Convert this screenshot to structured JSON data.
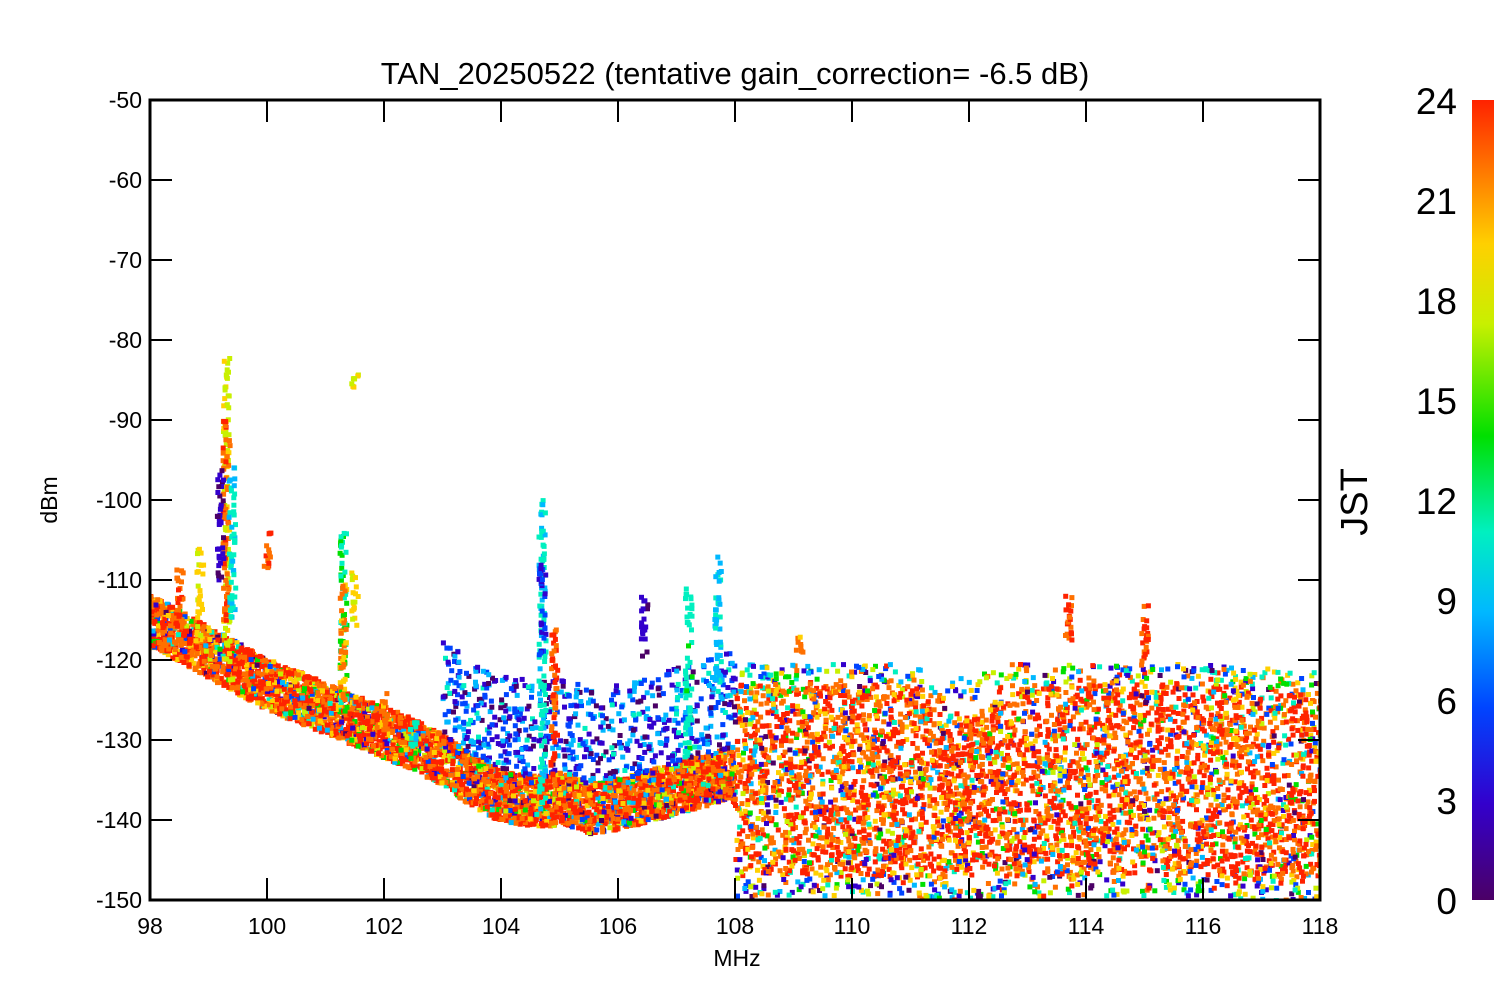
{
  "chart_data": {
    "type": "scatter",
    "title": "TAN_20250522 (tentative gain_correction= -6.5 dB)",
    "xlabel": "MHz",
    "ylabel": "dBm",
    "xlim": [
      98,
      118
    ],
    "ylim": [
      -150,
      -50
    ],
    "xticks": [
      98,
      100,
      102,
      104,
      106,
      108,
      110,
      112,
      114,
      116,
      118
    ],
    "yticks": [
      -50,
      -60,
      -70,
      -80,
      -90,
      -100,
      -110,
      -120,
      -130,
      -140,
      -150
    ],
    "colorbar": {
      "label": "JST",
      "range": [
        0,
        24
      ],
      "ticks": [
        0,
        3,
        6,
        9,
        12,
        15,
        18,
        21,
        24
      ],
      "colormap": "rainbow",
      "colors": [
        "#4b0066",
        "#3300cc",
        "#0044ff",
        "#00b8ff",
        "#00f0c0",
        "#00e000",
        "#c8f000",
        "#ffd000",
        "#ff7000",
        "#ff2200"
      ]
    },
    "noise_floor": [
      {
        "x": 98.0,
        "y": -115
      },
      {
        "x": 98.5,
        "y": -117
      },
      {
        "x": 99.0,
        "y": -119
      },
      {
        "x": 99.5,
        "y": -121
      },
      {
        "x": 100.0,
        "y": -123
      },
      {
        "x": 100.5,
        "y": -124.5
      },
      {
        "x": 101.0,
        "y": -126
      },
      {
        "x": 101.5,
        "y": -127.5
      },
      {
        "x": 102.0,
        "y": -129
      },
      {
        "x": 102.5,
        "y": -130.5
      },
      {
        "x": 103.0,
        "y": -132.5
      },
      {
        "x": 103.5,
        "y": -135
      },
      {
        "x": 104.0,
        "y": -137
      },
      {
        "x": 104.5,
        "y": -137.5
      },
      {
        "x": 104.9,
        "y": -137.5
      },
      {
        "x": 105.0,
        "y": -137
      },
      {
        "x": 105.5,
        "y": -138.5
      },
      {
        "x": 106.0,
        "y": -138
      },
      {
        "x": 106.5,
        "y": -137
      },
      {
        "x": 107.0,
        "y": -136
      },
      {
        "x": 107.5,
        "y": -135
      },
      {
        "x": 107.9,
        "y": -134
      },
      {
        "x": 108.0,
        "y": -135
      },
      {
        "x": 109.0,
        "y": -135
      },
      {
        "x": 110.0,
        "y": -135
      },
      {
        "x": 111.0,
        "y": -135
      },
      {
        "x": 111.5,
        "y": -136
      },
      {
        "x": 112.0,
        "y": -137
      },
      {
        "x": 112.5,
        "y": -135
      },
      {
        "x": 113.0,
        "y": -135
      },
      {
        "x": 114.0,
        "y": -135
      },
      {
        "x": 115.0,
        "y": -135
      },
      {
        "x": 116.0,
        "y": -135
      },
      {
        "x": 117.0,
        "y": -135.5
      },
      {
        "x": 118.0,
        "y": -136
      }
    ],
    "signals": [
      {
        "x": 98.5,
        "y_top": -108,
        "y_bottom": -118,
        "jst": 22
      },
      {
        "x": 98.85,
        "y_top": -106,
        "y_bottom": -117,
        "jst": 18
      },
      {
        "x": 99.3,
        "y_top": -82,
        "y_bottom": -120,
        "jst": 17
      },
      {
        "x": 99.3,
        "y_top": -90,
        "y_bottom": -115,
        "jst": 22
      },
      {
        "x": 99.4,
        "y_top": -95,
        "y_bottom": -115,
        "jst": 10
      },
      {
        "x": 99.2,
        "y_top": -96,
        "y_bottom": -110,
        "jst": 2
      },
      {
        "x": 100.0,
        "y_top": -104,
        "y_bottom": -109,
        "jst": 23
      },
      {
        "x": 101.3,
        "y_top": -104,
        "y_bottom": -127,
        "jst": 12
      },
      {
        "x": 101.3,
        "y_top": -110,
        "y_bottom": -125,
        "jst": 20
      },
      {
        "x": 101.5,
        "y_top": -84,
        "y_bottom": -86,
        "jst": 17
      },
      {
        "x": 101.5,
        "y_top": -109,
        "y_bottom": -116,
        "jst": 18
      },
      {
        "x": 102.0,
        "y_top": -124,
        "y_bottom": -129,
        "jst": 21
      },
      {
        "x": 102.5,
        "y_top": -127,
        "y_bottom": -131,
        "jst": 10
      },
      {
        "x": 104.7,
        "y_top": -100,
        "y_bottom": -138,
        "jst": 10
      },
      {
        "x": 104.7,
        "y_top": -108,
        "y_bottom": -120,
        "jst": 4
      },
      {
        "x": 104.9,
        "y_top": -116,
        "y_bottom": -140,
        "jst": 23
      },
      {
        "x": 106.45,
        "y_top": -112,
        "y_bottom": -120,
        "jst": 2
      },
      {
        "x": 107.2,
        "y_top": -111,
        "y_bottom": -132,
        "jst": 11
      },
      {
        "x": 107.7,
        "y_top": -107,
        "y_bottom": -125,
        "jst": 9
      },
      {
        "x": 109.1,
        "y_top": -117,
        "y_bottom": -119,
        "jst": 21
      },
      {
        "x": 113.7,
        "y_top": -110,
        "y_bottom": -118,
        "jst": 23
      },
      {
        "x": 115.0,
        "y_top": -113,
        "y_bottom": -122,
        "jst": 23
      }
    ]
  }
}
